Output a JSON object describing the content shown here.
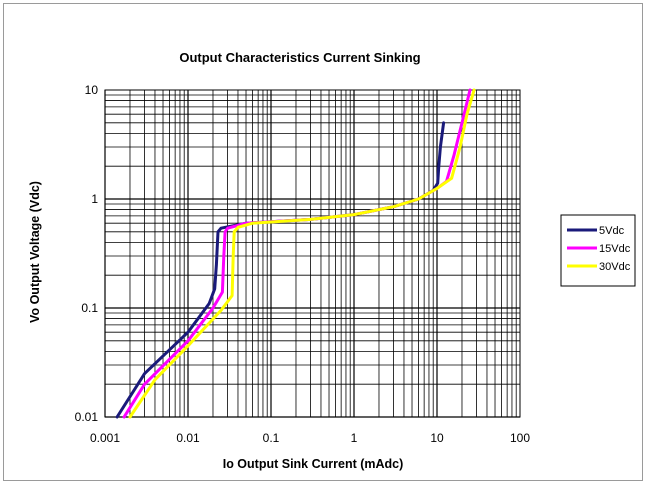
{
  "chart_data": {
    "type": "line",
    "title": "Output Characteristics Current Sinking",
    "xlabel": "Io  Output Sink Current (mAdc)",
    "ylabel": "Vo  Output Voltage (Vdc)",
    "x_scale": "log",
    "y_scale": "log",
    "xlim": [
      0.001,
      100
    ],
    "ylim": [
      0.01,
      10
    ],
    "x_ticks": [
      "0.001",
      "0.01",
      "0.1",
      "1",
      "10",
      "100"
    ],
    "y_ticks": [
      "0.01",
      "0.1",
      "1",
      "10"
    ],
    "grid": true,
    "legend_position": "right",
    "series": [
      {
        "name": "5Vdc",
        "color": "#1a1a7a",
        "points": [
          [
            0.0014,
            0.01
          ],
          [
            0.003,
            0.025
          ],
          [
            0.01,
            0.06
          ],
          [
            0.018,
            0.11
          ],
          [
            0.021,
            0.15
          ],
          [
            0.022,
            0.25
          ],
          [
            0.023,
            0.5
          ],
          [
            0.025,
            0.54
          ],
          [
            0.05,
            0.6
          ],
          [
            0.3,
            0.65
          ],
          [
            1,
            0.72
          ],
          [
            3,
            0.85
          ],
          [
            6,
            1.0
          ],
          [
            9,
            1.2
          ],
          [
            10.2,
            1.4
          ],
          [
            10.5,
            2.0
          ],
          [
            11,
            3.0
          ],
          [
            12,
            5.0
          ]
        ]
      },
      {
        "name": "15Vdc",
        "color": "#ff00ff",
        "points": [
          [
            0.0017,
            0.01
          ],
          [
            0.003,
            0.02
          ],
          [
            0.01,
            0.05
          ],
          [
            0.02,
            0.1
          ],
          [
            0.026,
            0.14
          ],
          [
            0.027,
            0.3
          ],
          [
            0.028,
            0.5
          ],
          [
            0.03,
            0.54
          ],
          [
            0.05,
            0.6
          ],
          [
            0.3,
            0.65
          ],
          [
            1,
            0.72
          ],
          [
            3,
            0.85
          ],
          [
            6,
            1.0
          ],
          [
            10,
            1.25
          ],
          [
            13,
            1.45
          ],
          [
            16,
            2.5
          ],
          [
            20,
            5.0
          ],
          [
            25,
            10.0
          ]
        ]
      },
      {
        "name": "30Vdc",
        "color": "#ffff00",
        "points": [
          [
            0.002,
            0.01
          ],
          [
            0.004,
            0.022
          ],
          [
            0.01,
            0.045
          ],
          [
            0.025,
            0.095
          ],
          [
            0.034,
            0.13
          ],
          [
            0.035,
            0.3
          ],
          [
            0.036,
            0.5
          ],
          [
            0.04,
            0.55
          ],
          [
            0.06,
            0.6
          ],
          [
            0.3,
            0.65
          ],
          [
            1,
            0.72
          ],
          [
            3,
            0.85
          ],
          [
            6,
            1.0
          ],
          [
            10,
            1.25
          ],
          [
            15,
            1.55
          ],
          [
            19,
            3.0
          ],
          [
            23,
            6.0
          ],
          [
            28,
            10.0
          ]
        ]
      }
    ]
  }
}
